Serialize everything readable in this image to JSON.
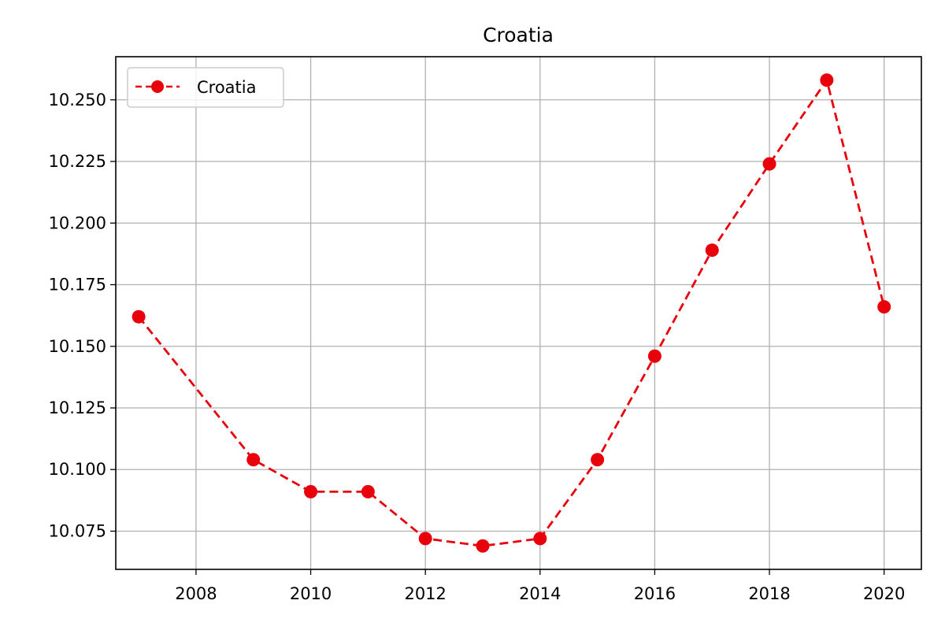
{
  "chart_data": {
    "type": "line",
    "title": "Croatia",
    "xlabel": "",
    "ylabel": "",
    "x": [
      2007,
      2009,
      2010,
      2011,
      2012,
      2013,
      2014,
      2015,
      2016,
      2017,
      2018,
      2019,
      2020
    ],
    "series": [
      {
        "name": "Croatia",
        "color": "#e8000b",
        "line_style": "dashed",
        "marker": "circle",
        "values": [
          10.162,
          10.104,
          10.091,
          10.091,
          10.072,
          10.069,
          10.072,
          10.104,
          10.146,
          10.189,
          10.224,
          10.258,
          10.166
        ]
      }
    ],
    "xlim": [
      2006.6,
      2020.65
    ],
    "ylim": [
      10.0595,
      10.2675
    ],
    "x_ticks": [
      "2008",
      "2010",
      "2012",
      "2014",
      "2016",
      "2018",
      "2020"
    ],
    "y_ticks": [
      "10.075",
      "10.100",
      "10.125",
      "10.150",
      "10.175",
      "10.200",
      "10.225",
      "10.250"
    ],
    "grid": true,
    "legend_position": "top-left"
  }
}
